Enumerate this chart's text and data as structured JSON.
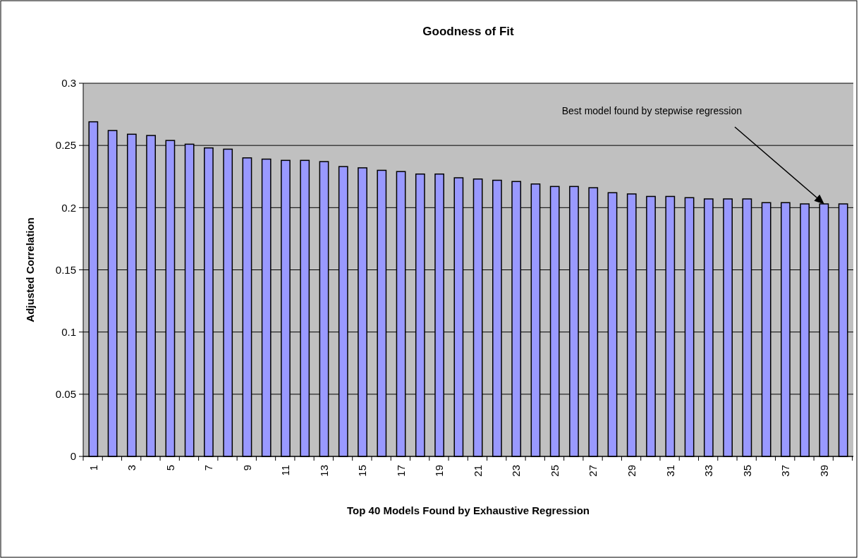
{
  "chart_data": {
    "type": "bar",
    "title": "Goodness of Fit",
    "xlabel": "Top 40 Models Found by Exhaustive Regression",
    "ylabel": "Adjusted Correlation",
    "categories": [
      "1",
      null,
      "3",
      null,
      "5",
      null,
      "7",
      null,
      "9",
      null,
      "11",
      null,
      "13",
      null,
      "15",
      null,
      "17",
      null,
      "19",
      null,
      "21",
      null,
      "23",
      null,
      "25",
      null,
      "27",
      null,
      "29",
      null,
      "31",
      null,
      "33",
      null,
      "35",
      null,
      "37",
      null,
      "39",
      null
    ],
    "values": [
      0.269,
      0.262,
      0.259,
      0.258,
      0.254,
      0.251,
      0.248,
      0.247,
      0.24,
      0.239,
      0.238,
      0.238,
      0.237,
      0.233,
      0.232,
      0.23,
      0.229,
      0.227,
      0.227,
      0.224,
      0.223,
      0.222,
      0.221,
      0.219,
      0.217,
      0.217,
      0.216,
      0.212,
      0.211,
      0.209,
      0.209,
      0.208,
      0.207,
      0.207,
      0.207,
      0.204,
      0.204,
      0.203,
      0.203,
      0.203
    ],
    "color": "#9999ff",
    "ylim": [
      0,
      0.3
    ],
    "yticks": [
      0,
      0.05,
      0.1,
      0.15,
      0.2,
      0.25,
      0.3
    ],
    "grid": "y",
    "annotations": [
      "Best model found by stepwise regression"
    ]
  }
}
